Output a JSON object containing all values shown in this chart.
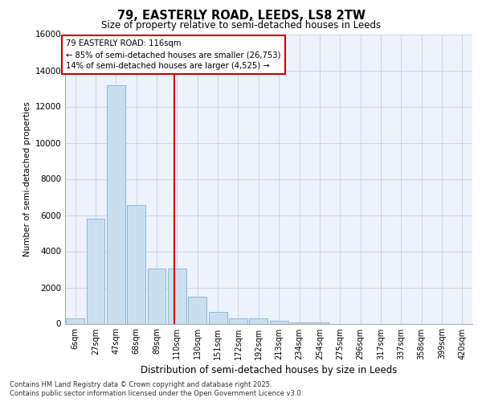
{
  "title_line1": "79, EASTERLY ROAD, LEEDS, LS8 2TW",
  "title_line2": "Size of property relative to semi-detached houses in Leeds",
  "xlabel": "Distribution of semi-detached houses by size in Leeds",
  "ylabel": "Number of semi-detached properties",
  "categories": [
    "6sqm",
    "27sqm",
    "47sqm",
    "68sqm",
    "89sqm",
    "110sqm",
    "130sqm",
    "151sqm",
    "172sqm",
    "192sqm",
    "213sqm",
    "234sqm",
    "254sqm",
    "275sqm",
    "296sqm",
    "317sqm",
    "337sqm",
    "358sqm",
    "399sqm",
    "420sqm"
  ],
  "bar_heights": [
    300,
    5800,
    13200,
    6550,
    3050,
    3050,
    1480,
    650,
    300,
    270,
    150,
    70,
    80,
    0,
    0,
    0,
    0,
    0,
    0,
    0
  ],
  "bar_color": "#c9dff0",
  "bar_edgecolor": "#88b8d8",
  "vline_x": 4.88,
  "vline_color": "#cc0000",
  "annotation_line1": "79 EASTERLY ROAD: 116sqm",
  "annotation_line2": "← 85% of semi-detached houses are smaller (26,753)",
  "annotation_line3": "14% of semi-detached houses are larger (4,525) →",
  "annotation_box_color": "#cc0000",
  "ylim": [
    0,
    16000
  ],
  "yticks": [
    0,
    2000,
    4000,
    6000,
    8000,
    10000,
    12000,
    14000,
    16000
  ],
  "footer_line1": "Contains HM Land Registry data © Crown copyright and database right 2025.",
  "footer_line2": "Contains public sector information licensed under the Open Government Licence v3.0.",
  "bg_color": "#eef2fc",
  "grid_color": "#c5cde8"
}
